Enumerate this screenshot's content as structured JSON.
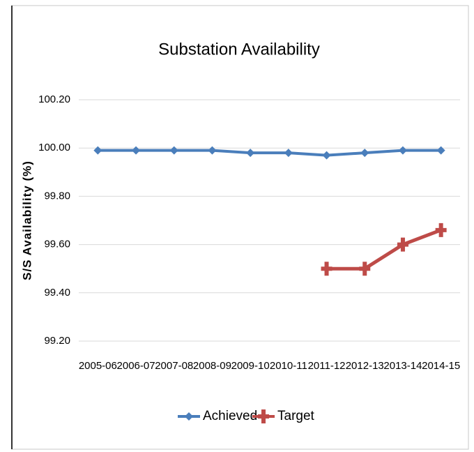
{
  "chart_data": {
    "type": "line",
    "title": "Substation Availability",
    "y_label": "S/S Availability (%)",
    "categories": [
      "2005-06",
      "2006-07",
      "2007-08",
      "2008-09",
      "2009-10",
      "2010-11",
      "2011-12",
      "2012-13",
      "2013-14",
      "2014-15"
    ],
    "series": [
      {
        "name": "Achieved",
        "color": "#4a7ebb",
        "values": [
          99.99,
          99.99,
          99.99,
          99.99,
          99.98,
          99.98,
          99.97,
          99.98,
          99.99,
          99.99
        ]
      },
      {
        "name": "Target",
        "color": "#be4b48",
        "values": [
          null,
          null,
          null,
          null,
          null,
          null,
          99.5,
          99.5,
          99.6,
          99.66
        ]
      }
    ],
    "ylim": [
      99.2,
      100.2
    ],
    "yticks": [
      {
        "value": 99.2,
        "label": "99.20"
      },
      {
        "value": 99.4,
        "label": "99.40"
      },
      {
        "value": 99.6,
        "label": "99.60"
      },
      {
        "value": 99.8,
        "label": "99.80"
      },
      {
        "value": 100.0,
        "label": "100.00"
      },
      {
        "value": 100.2,
        "label": "100.20"
      }
    ],
    "grid": true,
    "legend": "bottom"
  }
}
